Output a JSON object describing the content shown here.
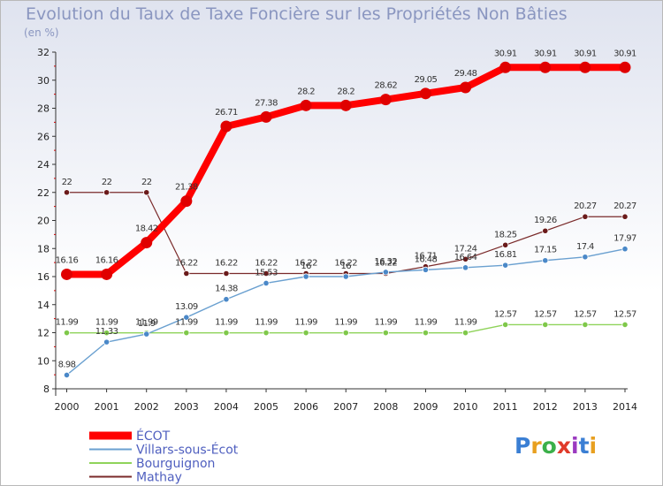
{
  "title": "Evolution du Taux de Taxe Foncière sur les Propriétés Non Bâties",
  "subtitle": "(en %)",
  "logo_text": "Proxiti",
  "chart_data": {
    "type": "line",
    "x": [
      2000,
      2001,
      2002,
      2003,
      2004,
      2005,
      2006,
      2007,
      2008,
      2009,
      2010,
      2011,
      2012,
      2013,
      2014
    ],
    "ylim": [
      8,
      32
    ],
    "yticks": [
      8,
      10,
      12,
      14,
      16,
      18,
      20,
      22,
      24,
      26,
      28,
      30,
      32
    ],
    "xlabel": "",
    "ylabel": "(en %)",
    "grid": false,
    "series": [
      {
        "name": "Mathay",
        "color": "#7a2a2a",
        "point_color": "#6a1a1a",
        "values": [
          22,
          22,
          22,
          16.22,
          16.22,
          16.22,
          16.22,
          16.22,
          16.22,
          16.71,
          17.24,
          18.25,
          19.26,
          20.27,
          20.27
        ],
        "labels": [
          "22",
          "22",
          "22",
          "16.22",
          "16.22",
          "16.22",
          "16.22",
          "16.22",
          "16.22",
          "16.71",
          "17.24",
          "18.25",
          "19.26",
          "20.27",
          "20.27"
        ]
      },
      {
        "name": "Bourguignon",
        "color": "#8fd35a",
        "point_color": "#7fc84a",
        "values": [
          11.99,
          11.99,
          11.99,
          11.99,
          11.99,
          11.99,
          11.99,
          11.99,
          11.99,
          11.99,
          11.99,
          12.57,
          12.57,
          12.57,
          12.57
        ],
        "labels": [
          "11.99",
          "11.99",
          "11.99",
          "11.99",
          "11.99",
          "11.99",
          "11.99",
          "11.99",
          "11.99",
          "11.99",
          "11.99",
          "12.57",
          "12.57",
          "12.57",
          "12.57"
        ]
      },
      {
        "name": "Villars-sous-Écot",
        "color": "#6aa0d0",
        "point_color": "#4a88c8",
        "values": [
          8.98,
          11.33,
          11.9,
          13.09,
          14.38,
          15.53,
          16,
          16,
          16.32,
          16.48,
          16.64,
          16.81,
          17.15,
          17.4,
          17.97
        ],
        "labels": [
          "8.98",
          "11.33",
          "11.9",
          "13.09",
          "14.38",
          "15.53",
          "16",
          "16",
          "16.32",
          "16.48",
          "16.64",
          "16.81",
          "17.15",
          "17.4",
          "17.97"
        ]
      },
      {
        "name": "ÉCOT",
        "color": "#ff0000",
        "point_color": "#e00000",
        "values": [
          16.16,
          16.16,
          18.42,
          21.38,
          26.71,
          27.38,
          28.2,
          28.2,
          28.62,
          29.05,
          29.48,
          30.91,
          30.91,
          30.91,
          30.91
        ],
        "labels": [
          "16.16",
          "16.16",
          "18.42",
          "21.38",
          "26.71",
          "27.38",
          "28.2",
          "28.2",
          "28.62",
          "29.05",
          "29.48",
          "30.91",
          "30.91",
          "30.91",
          "30.91"
        ]
      }
    ],
    "legend": {
      "placement": "bottom-left",
      "entries": [
        {
          "name": "ÉCOT",
          "color": "#ff0000",
          "text_color": "#4f5fbf"
        },
        {
          "name": "Villars-sous-Écot",
          "color": "#6aa0d0",
          "text_color": "#4f5fbf"
        },
        {
          "name": "Bourguignon",
          "color": "#8fd35a",
          "text_color": "#4f5fbf"
        },
        {
          "name": "Mathay",
          "color": "#7a2a2a",
          "text_color": "#4f5fbf"
        }
      ]
    }
  }
}
